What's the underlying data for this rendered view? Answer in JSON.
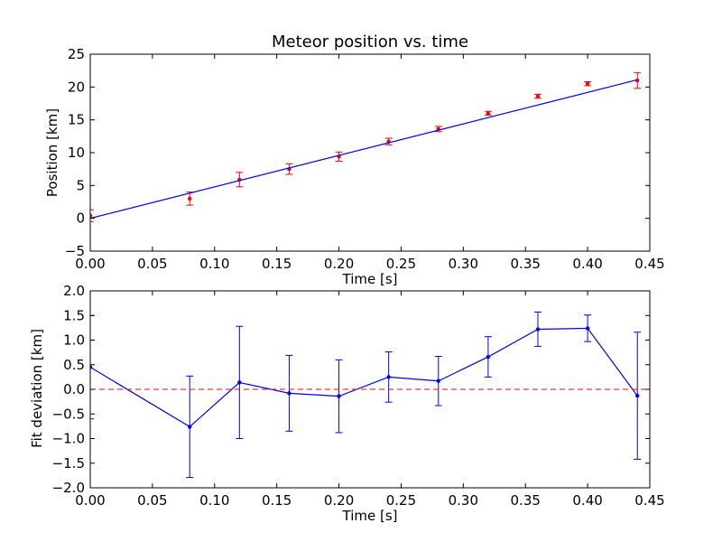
{
  "colors": {
    "data_points": "#ff0000",
    "fit_line": "#0000ff",
    "residuals": "#0000ff",
    "zero_line": "#ff0000",
    "axes": "#000000",
    "background": "#ffffff"
  },
  "chart_data": [
    {
      "type": "scatter",
      "title": "Meteor position vs. time",
      "xlabel": "Time [s]",
      "ylabel": "Position [km]",
      "xlim": [
        0.0,
        0.45
      ],
      "ylim": [
        -5,
        25
      ],
      "xticks": [
        "0.00",
        "0.05",
        "0.10",
        "0.15",
        "0.20",
        "0.25",
        "0.30",
        "0.35",
        "0.40",
        "0.45"
      ],
      "yticks": [
        "−5",
        "0",
        "5",
        "10",
        "15",
        "20",
        "25"
      ],
      "grid": false,
      "series": [
        {
          "kind": "errorbar",
          "x": [
            0.0,
            0.08,
            0.12,
            0.16,
            0.2,
            0.24,
            0.28,
            0.32,
            0.36,
            0.4,
            0.44
          ],
          "y": [
            0.4,
            3.0,
            5.9,
            7.5,
            9.4,
            11.7,
            13.6,
            16.0,
            18.6,
            20.5,
            21.0
          ],
          "yerr": [
            0.9,
            1.0,
            1.1,
            0.8,
            0.7,
            0.5,
            0.4,
            0.3,
            0.3,
            0.3,
            1.2
          ],
          "color": "#ff0000"
        },
        {
          "kind": "line",
          "x": [
            0.0,
            0.44
          ],
          "y": [
            0.0,
            21.1
          ],
          "color": "#0000ff"
        }
      ]
    },
    {
      "type": "line",
      "title": "",
      "xlabel": "Time [s]",
      "ylabel": "Fit deviation [km]",
      "xlim": [
        0.0,
        0.45
      ],
      "ylim": [
        -2.0,
        2.0
      ],
      "xticks": [
        "0.00",
        "0.05",
        "0.10",
        "0.15",
        "0.20",
        "0.25",
        "0.30",
        "0.35",
        "0.40",
        "0.45"
      ],
      "yticks": [
        "−2.0",
        "−1.5",
        "−1.0",
        "−0.5",
        "0.0",
        "0.5",
        "1.0",
        "1.5",
        "2.0"
      ],
      "grid": false,
      "series": [
        {
          "kind": "errorbar-line",
          "x": [
            0.0,
            0.08,
            0.12,
            0.16,
            0.2,
            0.24,
            0.28,
            0.32,
            0.36,
            0.4,
            0.44
          ],
          "y": [
            0.45,
            -0.76,
            0.14,
            -0.08,
            -0.14,
            0.25,
            0.17,
            0.66,
            1.22,
            1.24,
            -0.13
          ],
          "yerr": [
            1.05,
            1.03,
            1.14,
            0.77,
            0.74,
            0.51,
            0.5,
            0.41,
            0.35,
            0.27,
            1.29
          ],
          "color": "#0000ff"
        },
        {
          "kind": "hline-dashed",
          "y": 0.0,
          "color": "#ff0000"
        }
      ]
    }
  ]
}
